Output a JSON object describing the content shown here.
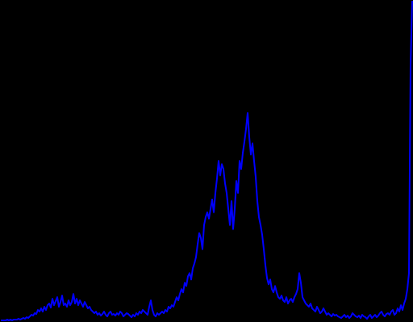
{
  "chart_data": {
    "type": "line",
    "color": "#0000ff",
    "background": "#000000",
    "xlim": [
      0,
      255
    ],
    "ylim": [
      0,
      400
    ],
    "values": [
      1,
      1,
      1,
      1,
      2,
      1,
      2,
      1,
      2,
      2,
      2,
      3,
      2,
      3,
      4,
      3,
      5,
      4,
      6,
      8,
      7,
      10,
      9,
      14,
      12,
      16,
      12,
      18,
      14,
      20,
      22,
      17,
      28,
      20,
      25,
      30,
      18,
      24,
      32,
      20,
      22,
      18,
      26,
      20,
      24,
      34,
      22,
      28,
      20,
      26,
      22,
      18,
      24,
      20,
      16,
      18,
      14,
      12,
      10,
      12,
      8,
      10,
      7,
      9,
      12,
      8,
      6,
      10,
      12,
      8,
      9,
      7,
      10,
      8,
      12,
      10,
      6,
      8,
      10,
      9,
      7,
      5,
      8,
      6,
      10,
      8,
      12,
      10,
      14,
      12,
      10,
      8,
      18,
      26,
      14,
      8,
      6,
      10,
      8,
      10,
      12,
      10,
      14,
      12,
      18,
      16,
      20,
      18,
      24,
      30,
      26,
      34,
      40,
      36,
      48,
      44,
      56,
      60,
      52,
      66,
      72,
      80,
      96,
      110,
      104,
      90,
      120,
      130,
      136,
      128,
      140,
      152,
      136,
      160,
      178,
      200,
      182,
      196,
      190,
      172,
      160,
      140,
      120,
      150,
      115,
      140,
      175,
      160,
      200,
      190,
      210,
      224,
      240,
      260,
      230,
      208,
      222,
      200,
      180,
      150,
      130,
      120,
      108,
      90,
      70,
      54,
      46,
      52,
      40,
      36,
      44,
      36,
      30,
      28,
      32,
      26,
      24,
      30,
      22,
      26,
      28,
      24,
      30,
      34,
      40,
      60,
      48,
      30,
      26,
      22,
      20,
      18,
      22,
      16,
      14,
      12,
      18,
      14,
      10,
      12,
      16,
      12,
      8,
      10,
      8,
      6,
      9,
      7,
      8,
      6,
      5,
      4,
      6,
      8,
      5,
      7,
      4,
      6,
      10,
      8,
      6,
      5,
      7,
      4,
      8,
      6,
      5,
      3,
      6,
      8,
      4,
      6,
      8,
      5,
      7,
      10,
      12,
      8,
      6,
      9,
      10,
      8,
      12,
      14,
      8,
      10,
      16,
      12,
      20,
      14,
      22,
      28,
      40,
      60,
      320,
      400
    ]
  }
}
